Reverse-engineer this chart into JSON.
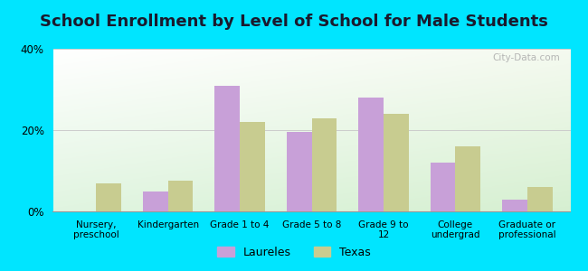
{
  "title": "School Enrollment by Level of School for Male Students",
  "categories": [
    "Nursery,\npreschool",
    "Kindergarten",
    "Grade 1 to 4",
    "Grade 5 to 8",
    "Grade 9 to\n12",
    "College\nundergrad",
    "Graduate or\nprofessional"
  ],
  "laureles": [
    0,
    5,
    31,
    19.5,
    28,
    12,
    3
  ],
  "texas": [
    7,
    7.5,
    22,
    23,
    24,
    16,
    6
  ],
  "bar_color_laureles": "#c8a0d8",
  "bar_color_texas": "#c8cc90",
  "background_color": "#00e5ff",
  "ylim": [
    0,
    40
  ],
  "yticks": [
    0,
    20,
    40
  ],
  "ytick_labels": [
    "0%",
    "20%",
    "40%"
  ],
  "title_fontsize": 13,
  "legend_labels": [
    "Laureles",
    "Texas"
  ],
  "bar_width": 0.35,
  "grid_color": "#cccccc",
  "watermark": "City-Data.com"
}
